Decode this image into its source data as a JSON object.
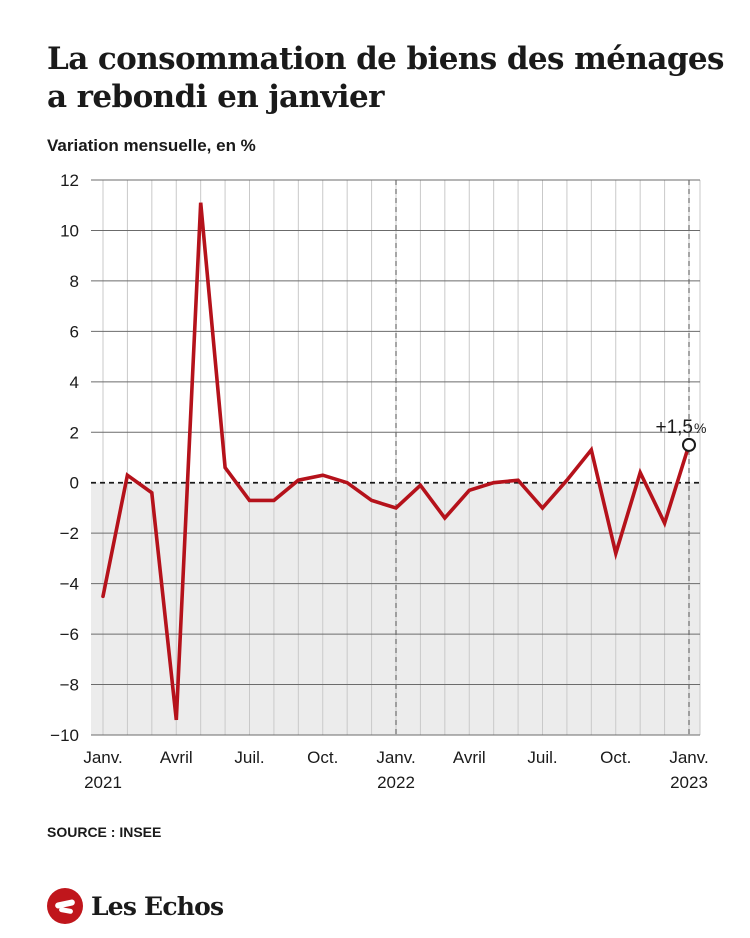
{
  "chart_data": {
    "type": "line",
    "title": "La consommation de biens des ménages a rebondi en janvier",
    "subtitle": "Variation mensuelle, en %",
    "ylim": [
      -10,
      12
    ],
    "yticks": [
      12,
      10,
      8,
      6,
      4,
      2,
      0,
      -2,
      -4,
      -6,
      -8,
      -10
    ],
    "ytick_labels": [
      "12",
      "10",
      "8",
      "6",
      "4",
      "2",
      "0",
      "−2",
      "−4",
      "−6",
      "−8",
      "−10"
    ],
    "x": [
      "2021-01",
      "2021-02",
      "2021-03",
      "2021-04",
      "2021-05",
      "2021-06",
      "2021-07",
      "2021-08",
      "2021-09",
      "2021-10",
      "2021-11",
      "2021-12",
      "2022-01",
      "2022-02",
      "2022-03",
      "2022-04",
      "2022-05",
      "2022-06",
      "2022-07",
      "2022-08",
      "2022-09",
      "2022-10",
      "2022-11",
      "2022-12",
      "2023-01"
    ],
    "xtick_labels": [
      {
        "x": "2021-01",
        "label": "Janv.",
        "year": "2021"
      },
      {
        "x": "2021-04",
        "label": "Avril",
        "year": ""
      },
      {
        "x": "2021-07",
        "label": "Juil.",
        "year": ""
      },
      {
        "x": "2021-10",
        "label": "Oct.",
        "year": ""
      },
      {
        "x": "2022-01",
        "label": "Janv.",
        "year": "2022"
      },
      {
        "x": "2022-04",
        "label": "Avril",
        "year": ""
      },
      {
        "x": "2022-07",
        "label": "Juil.",
        "year": ""
      },
      {
        "x": "2022-10",
        "label": "Oct.",
        "year": ""
      },
      {
        "x": "2023-01",
        "label": "Janv.",
        "year": "2023"
      }
    ],
    "year_separators": [
      "2022-01",
      "2023-01"
    ],
    "series": [
      {
        "name": "",
        "color": "#b5121b",
        "values": [
          -4.5,
          0.3,
          -0.4,
          -9.4,
          11.1,
          0.6,
          -0.7,
          -0.7,
          0.1,
          0.3,
          0.0,
          -0.7,
          -1.0,
          -0.1,
          -1.4,
          -0.3,
          0.0,
          0.1,
          -1.0,
          0.1,
          1.3,
          -2.8,
          0.4,
          -1.6,
          1.5
        ]
      }
    ],
    "annotation": {
      "x": "2023-01",
      "value_text": "+1,5",
      "unit_text": "%"
    },
    "grid": true,
    "negative_area_color": "#ececec",
    "legend": "none"
  },
  "source": "SOURCE : INSEE",
  "brand": "Les Echos",
  "colors": {
    "line": "#b5121b",
    "brand": "#c0161c",
    "grid": "#555555"
  }
}
